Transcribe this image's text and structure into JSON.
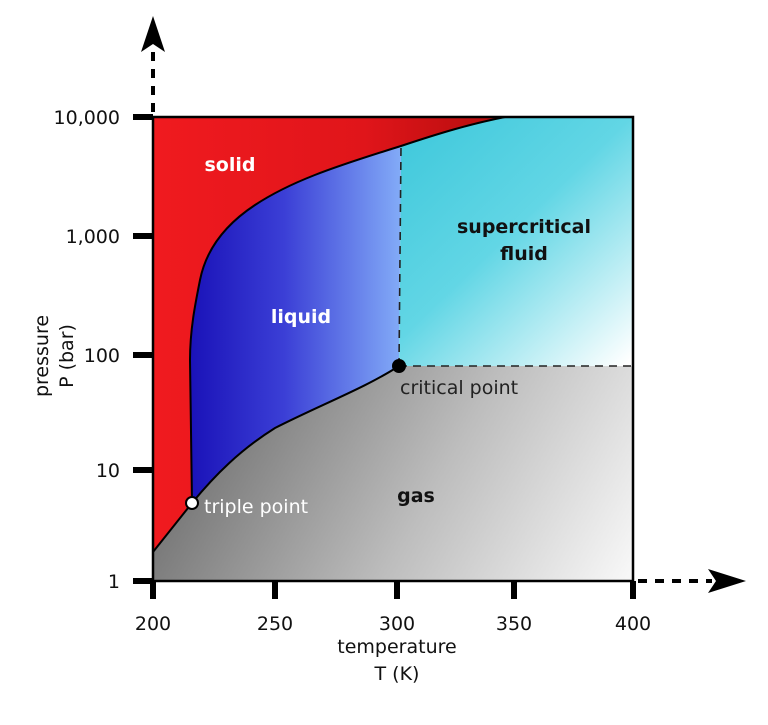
{
  "x_axis": {
    "title": "temperature",
    "unit": "T (K)",
    "ticks": [
      "200",
      "250",
      "300",
      "350",
      "400"
    ]
  },
  "y_axis": {
    "title": "pressure",
    "unit": "P (bar)",
    "ticks": [
      "1",
      "10",
      "100",
      "1,000",
      "10,000"
    ]
  },
  "regions": {
    "solid": "solid",
    "liquid": "liquid",
    "supercritical_line1": "supercritical",
    "supercritical_line2": "fluid",
    "gas": "gas"
  },
  "points": {
    "triple": "triple point",
    "critical": "critical point"
  },
  "colors": {
    "solid": "#e8191f",
    "liquid_dark": "#1a12b8",
    "liquid_light": "#7aa6f5",
    "supercritical": "#4fcfe0",
    "gas_dark": "#7a7a7a",
    "gas_light": "#f4f4f4"
  }
}
